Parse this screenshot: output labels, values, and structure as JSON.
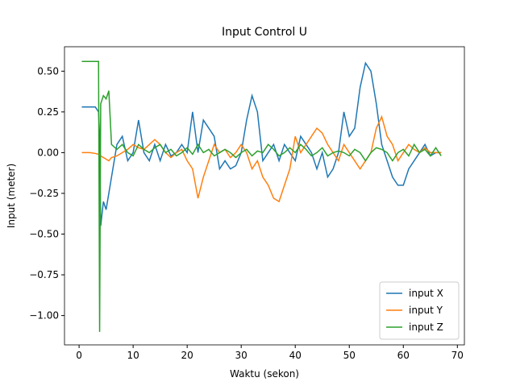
{
  "chart_data": {
    "type": "line",
    "title": "Input Control U",
    "xlabel": "Waktu (sekon)",
    "ylabel": "Input (meter)",
    "x": [
      0.5,
      1,
      2,
      3,
      3.6,
      3.8,
      4,
      4.5,
      5,
      5.5,
      6,
      7,
      8,
      9,
      10,
      11,
      12,
      13,
      14,
      15,
      16,
      17,
      18,
      19,
      20,
      21,
      22,
      23,
      24,
      25,
      26,
      27,
      28,
      29,
      30,
      31,
      32,
      33,
      34,
      35,
      36,
      37,
      38,
      39,
      40,
      41,
      42,
      43,
      44,
      45,
      46,
      47,
      48,
      49,
      50,
      51,
      52,
      53,
      54,
      55,
      56,
      57,
      58,
      59,
      60,
      61,
      62,
      63,
      64,
      65,
      66,
      67
    ],
    "series": [
      {
        "name": "input X",
        "color": "#1f77b4",
        "values": [
          0.28,
          0.28,
          0.28,
          0.28,
          0.25,
          0.1,
          -0.45,
          -0.3,
          -0.35,
          -0.25,
          -0.15,
          0.05,
          0.1,
          -0.05,
          0.0,
          0.2,
          0.0,
          -0.05,
          0.05,
          -0.05,
          0.05,
          -0.02,
          0.0,
          0.05,
          0.0,
          0.25,
          0.0,
          0.2,
          0.15,
          0.1,
          -0.1,
          -0.05,
          -0.1,
          -0.08,
          0.0,
          0.2,
          0.35,
          0.25,
          -0.05,
          0.0,
          0.05,
          -0.05,
          0.05,
          0.0,
          -0.05,
          0.1,
          0.05,
          0.0,
          -0.1,
          0.0,
          -0.15,
          -0.1,
          0.0,
          0.25,
          0.1,
          0.15,
          0.4,
          0.55,
          0.5,
          0.3,
          0.05,
          -0.05,
          -0.15,
          -0.2,
          -0.2,
          -0.1,
          -0.05,
          0.0,
          0.05,
          -0.02,
          0.0,
          0.0
        ]
      },
      {
        "name": "input Y",
        "color": "#ff7f0e",
        "values": [
          0.0,
          0.0,
          0.0,
          -0.005,
          -0.01,
          -0.01,
          -0.02,
          -0.03,
          -0.04,
          -0.05,
          -0.03,
          -0.02,
          0.0,
          0.02,
          0.05,
          0.03,
          0.02,
          0.05,
          0.08,
          0.05,
          0.0,
          -0.03,
          0.0,
          0.02,
          -0.05,
          -0.1,
          -0.28,
          -0.15,
          -0.05,
          0.05,
          0.0,
          0.02,
          -0.03,
          0.0,
          0.05,
          0.0,
          -0.1,
          -0.05,
          -0.15,
          -0.2,
          -0.28,
          -0.3,
          -0.2,
          -0.1,
          0.1,
          0.0,
          0.05,
          0.1,
          0.15,
          0.12,
          0.05,
          0.0,
          -0.05,
          0.05,
          0.0,
          -0.05,
          -0.1,
          -0.05,
          0.0,
          0.15,
          0.22,
          0.1,
          0.05,
          -0.05,
          0.0,
          0.05,
          0.02,
          0.0,
          0.03,
          0.0,
          0.0,
          0.0
        ]
      },
      {
        "name": "input Z",
        "color": "#2ca02c",
        "values": [
          0.56,
          0.56,
          0.56,
          0.56,
          0.56,
          -1.1,
          0.3,
          0.35,
          0.33,
          0.38,
          0.05,
          0.02,
          0.05,
          0.0,
          -0.02,
          0.05,
          0.02,
          0.0,
          0.03,
          0.05,
          0.0,
          0.02,
          -0.02,
          0.0,
          0.03,
          -0.01,
          0.05,
          0.0,
          0.02,
          -0.02,
          0.0,
          0.02,
          0.0,
          -0.03,
          0.0,
          0.02,
          -0.02,
          0.01,
          0.0,
          0.05,
          0.02,
          -0.02,
          0.0,
          0.03,
          0.0,
          0.05,
          0.02,
          -0.02,
          0.0,
          0.03,
          -0.02,
          0.0,
          0.01,
          0.0,
          -0.02,
          0.02,
          0.0,
          -0.05,
          0.0,
          0.03,
          0.02,
          0.0,
          -0.05,
          0.0,
          0.02,
          -0.02,
          0.05,
          0.0,
          0.02,
          -0.02,
          0.03,
          -0.02
        ]
      }
    ],
    "xlim": [
      -2.7,
      71.3
    ],
    "ylim": [
      -1.18,
      0.65
    ],
    "xticks": [
      0,
      10,
      20,
      30,
      40,
      50,
      60,
      70
    ],
    "yticks": [
      {
        "value": -1.0,
        "label": "−1.00"
      },
      {
        "value": -0.75,
        "label": "−0.75"
      },
      {
        "value": -0.5,
        "label": "−0.50"
      },
      {
        "value": -0.25,
        "label": "−0.25"
      },
      {
        "value": 0.0,
        "label": "0.00"
      },
      {
        "value": 0.25,
        "label": "0.25"
      },
      {
        "value": 0.5,
        "label": "0.50"
      }
    ],
    "grid": false,
    "legend": "lower right"
  }
}
